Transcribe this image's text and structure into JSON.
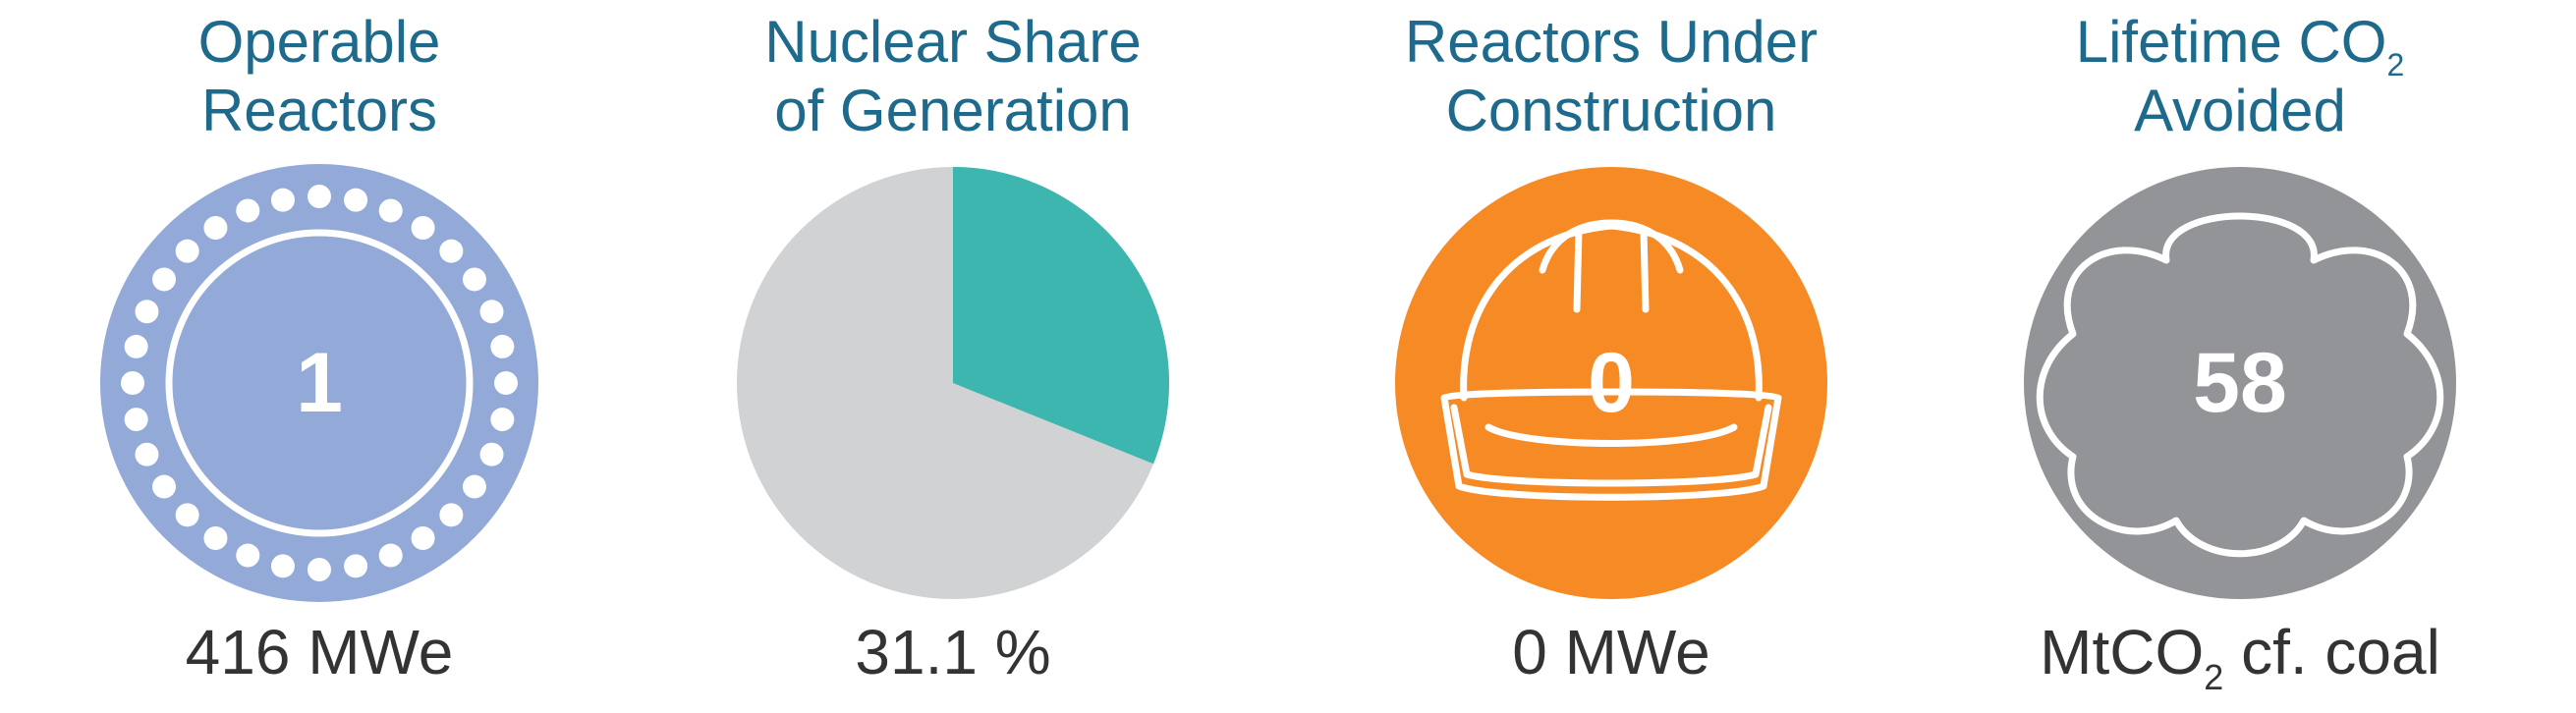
{
  "colors": {
    "title": "#1e6a8c",
    "caption": "#333333",
    "reactors": "#93a9d7",
    "pie_nuclear": "#3cb6ae",
    "pie_other": "#d1d2d4",
    "construction": "#f68b26",
    "co2": "#939497"
  },
  "stats": {
    "operable": {
      "title_line1": "Operable",
      "title_line2": "Reactors",
      "value": "1",
      "caption": "416 MWe",
      "icon": "reactor-core-icon"
    },
    "share": {
      "title_line1": "Nuclear Share",
      "title_line2": "of Generation",
      "caption": "31.1 %",
      "share_percent": 31.1
    },
    "construction": {
      "title_line1": "Reactors Under",
      "title_line2": "Construction",
      "value": "0",
      "caption": "0 MWe",
      "icon": "hard-hat-icon"
    },
    "co2": {
      "title_line1_text": "Lifetime CO",
      "title_line1_sub": "2",
      "title_line2": "Avoided",
      "value": "58",
      "caption_text": "MtCO",
      "caption_sub": "2",
      "caption_suffix": " cf. coal",
      "icon": "cloud-icon"
    }
  }
}
